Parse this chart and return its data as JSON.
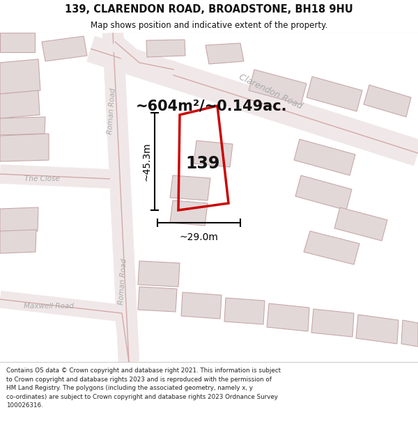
{
  "title": "139, CLARENDON ROAD, BROADSTONE, BH18 9HU",
  "subtitle": "Map shows position and indicative extent of the property.",
  "footer": "Contains OS data © Crown copyright and database right 2021. This information is subject\nto Crown copyright and database rights 2023 and is reproduced with the permission of\nHM Land Registry. The polygons (including the associated geometry, namely x, y\nco-ordinates) are subject to Crown copyright and database rights 2023 Ordnance Survey\n100026316.",
  "area_label": "~604m²/~0.149ac.",
  "number_label": "139",
  "dim_width": "~29.0m",
  "dim_height": "~45.3m",
  "map_bg": "#f7f3f3",
  "road_fill": "#f0e8e8",
  "road_edge": "#d4a8a8",
  "building_fill": "#e2d8d8",
  "building_edge": "#c8a8a8",
  "plot_color": "#cc0000",
  "label_gray": "#aaaaaa",
  "title_color": "#111111",
  "footer_color": "#222222"
}
